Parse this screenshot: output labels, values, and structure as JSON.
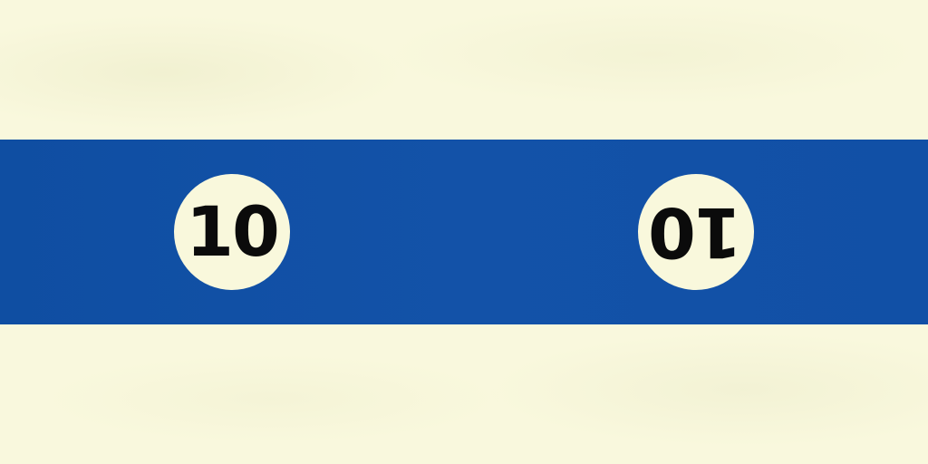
{
  "ball": {
    "number": "10",
    "stripe_color": "#1352a8",
    "base_color": "#f9f8dd",
    "number_circle_color": "#f9f8dc",
    "number_color": "#0b0b0b"
  }
}
